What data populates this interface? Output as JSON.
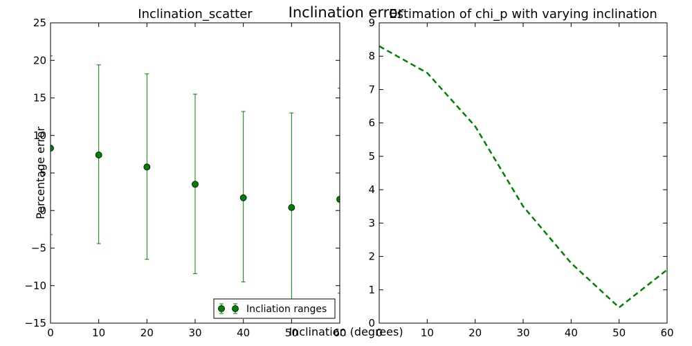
{
  "figure": {
    "suptitle": "Inclination error",
    "xlabel": "Inclination (degrees)",
    "ylabel": "Percentage error"
  },
  "chart_data": [
    {
      "type": "scatter",
      "title": "Inclination_scatter",
      "xlabel": "",
      "ylabel": "",
      "xlim": [
        0,
        60
      ],
      "ylim": [
        -15,
        25
      ],
      "xticks": [
        0,
        10,
        20,
        30,
        40,
        50,
        60
      ],
      "yticks": [
        -15,
        -10,
        -5,
        0,
        5,
        10,
        15,
        20,
        25
      ],
      "xtick_labels": [
        "0",
        "10",
        "20",
        "30",
        "40",
        "50",
        "60"
      ],
      "ytick_labels": [
        "−15",
        "−10",
        "−5",
        "0",
        "5",
        "10",
        "15",
        "20",
        "25"
      ],
      "grid": false,
      "legend_position": "lower right",
      "series": [
        {
          "name": "Incliation ranges",
          "color": "#008000",
          "marker": "circle",
          "x": [
            0,
            10,
            20,
            30,
            40,
            50,
            60
          ],
          "y": [
            8.3,
            7.4,
            5.8,
            3.5,
            1.7,
            0.4,
            1.5
          ],
          "yerr_low": [
            -3.2,
            -4.4,
            -6.5,
            -8.4,
            -9.5,
            -12.3,
            -11.0
          ],
          "yerr_high": [
            20.6,
            19.4,
            18.2,
            15.5,
            13.2,
            13.0,
            16.3
          ]
        }
      ]
    },
    {
      "type": "line",
      "title": "Estimation of chi_p with varying inclination",
      "xlabel": "",
      "ylabel": "",
      "xlim": [
        0,
        60
      ],
      "ylim": [
        0,
        9
      ],
      "xticks": [
        0,
        10,
        20,
        30,
        40,
        50,
        60
      ],
      "yticks": [
        0,
        1,
        2,
        3,
        4,
        5,
        6,
        7,
        8,
        9
      ],
      "xtick_labels": [
        "0",
        "10",
        "20",
        "30",
        "40",
        "50",
        "60"
      ],
      "ytick_labels": [
        "0",
        "1",
        "2",
        "3",
        "4",
        "5",
        "6",
        "7",
        "8",
        "9"
      ],
      "grid": false,
      "series": [
        {
          "color": "#008000",
          "linestyle": "dashed",
          "x": [
            0,
            10,
            20,
            30,
            40,
            50,
            60
          ],
          "y": [
            8.3,
            7.5,
            5.9,
            3.5,
            1.8,
            0.47,
            1.6
          ]
        }
      ]
    }
  ]
}
